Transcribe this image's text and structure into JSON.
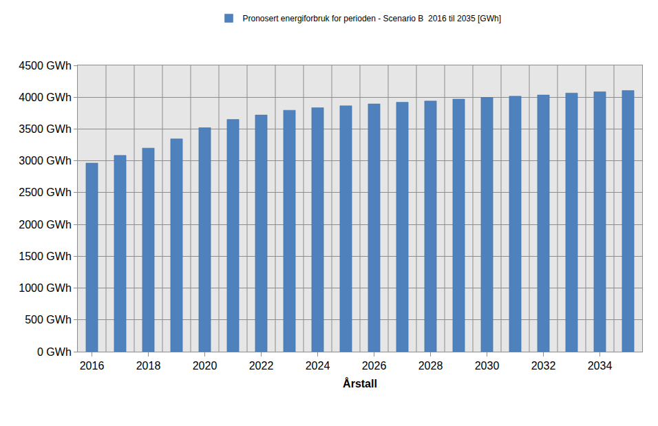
{
  "chart_data": {
    "type": "bar",
    "xlabel": "Årstall",
    "categories": [
      "2016",
      null,
      "2018",
      null,
      "2020",
      null,
      "2022",
      null,
      "2024",
      null,
      "2026",
      null,
      "2028",
      null,
      "2030",
      null,
      "2032",
      null,
      "2034",
      null
    ],
    "series": [
      {
        "name": "Pronosert energiforbruk for perioden - Scenario B  2016 til 2035 [GWh]",
        "color": "#4f81bd",
        "values": [
          2965,
          3085,
          3200,
          3345,
          3520,
          3650,
          3720,
          3795,
          3835,
          3865,
          3895,
          3920,
          3940,
          3970,
          3995,
          4015,
          4035,
          4065,
          4085,
          4105
        ]
      }
    ],
    "ylim": [
      0,
      4500
    ],
    "yticks": [
      {
        "value": 0,
        "label": "0 GWh"
      },
      {
        "value": 500,
        "label": "500 GWh"
      },
      {
        "value": 1000,
        "label": "1000 GWh"
      },
      {
        "value": 1500,
        "label": "1500 GWh"
      },
      {
        "value": 2000,
        "label": "2000 GWh"
      },
      {
        "value": 2500,
        "label": "2500 GWh"
      },
      {
        "value": 3000,
        "label": "3000 GWh"
      },
      {
        "value": 3500,
        "label": "3500 GWh"
      },
      {
        "value": 4000,
        "label": "4000 GWh"
      },
      {
        "value": 4500,
        "label": "4500 GWh"
      }
    ],
    "grid": true,
    "legend": "top"
  }
}
